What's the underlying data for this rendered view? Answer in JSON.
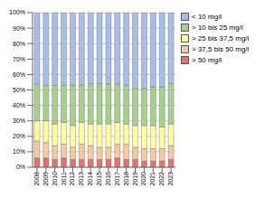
{
  "chart_data": {
    "type": "bar",
    "stacked": true,
    "grid": true,
    "legend": "right",
    "categories": [
      "2008",
      "2009",
      "2010",
      "2011",
      "2012",
      "2013",
      "2014",
      "2015",
      "2016",
      "2017",
      "2018",
      "2019",
      "2020",
      "2021",
      "2022",
      "2023"
    ],
    "ylim": [
      0,
      100
    ],
    "yticks": [
      {
        "value": 0,
        "label": "0%"
      },
      {
        "value": 10,
        "label": "10%"
      },
      {
        "value": 20,
        "label": "20%"
      },
      {
        "value": 30,
        "label": "30%"
      },
      {
        "value": 40,
        "label": "40%"
      },
      {
        "value": 50,
        "label": "50%"
      },
      {
        "value": 60,
        "label": "60%"
      },
      {
        "value": 70,
        "label": "70%"
      },
      {
        "value": 80,
        "label": "80%"
      },
      {
        "value": 90,
        "label": "90%"
      },
      {
        "value": 100,
        "label": "100%"
      }
    ],
    "series": [
      {
        "name": "< 10 mg/l",
        "color": "#a9bde9",
        "values": [
          46,
          47,
          47,
          47,
          47,
          47,
          46,
          46,
          46,
          46,
          47,
          49,
          49,
          48,
          48,
          46
        ]
      },
      {
        "name": "> 10 bis 25 mg/l",
        "color": "#a8d08d",
        "values": [
          24,
          23,
          25,
          24,
          26,
          24,
          26,
          26,
          26,
          25,
          25,
          24,
          24,
          25,
          26,
          26
        ]
      },
      {
        "name": "> 25 bis 37,5 mg/l",
        "color": "#ffff99",
        "values": [
          13,
          14,
          14,
          14,
          14,
          14,
          14,
          15,
          15,
          14,
          13,
          14,
          15,
          15,
          14,
          14
        ]
      },
      {
        "name": "> 37,5 bis 50 mg/l",
        "color": "#f8c8a0",
        "values": [
          11,
          10,
          9,
          9,
          8,
          10,
          9,
          8,
          8,
          9,
          10,
          8,
          8,
          8,
          8,
          9
        ]
      },
      {
        "name": "> 50 mg/l",
        "color": "#e8706a",
        "values": [
          6,
          6,
          5,
          6,
          5,
          5,
          5,
          5,
          5,
          6,
          5,
          5,
          4,
          4,
          4,
          5
        ]
      }
    ]
  }
}
